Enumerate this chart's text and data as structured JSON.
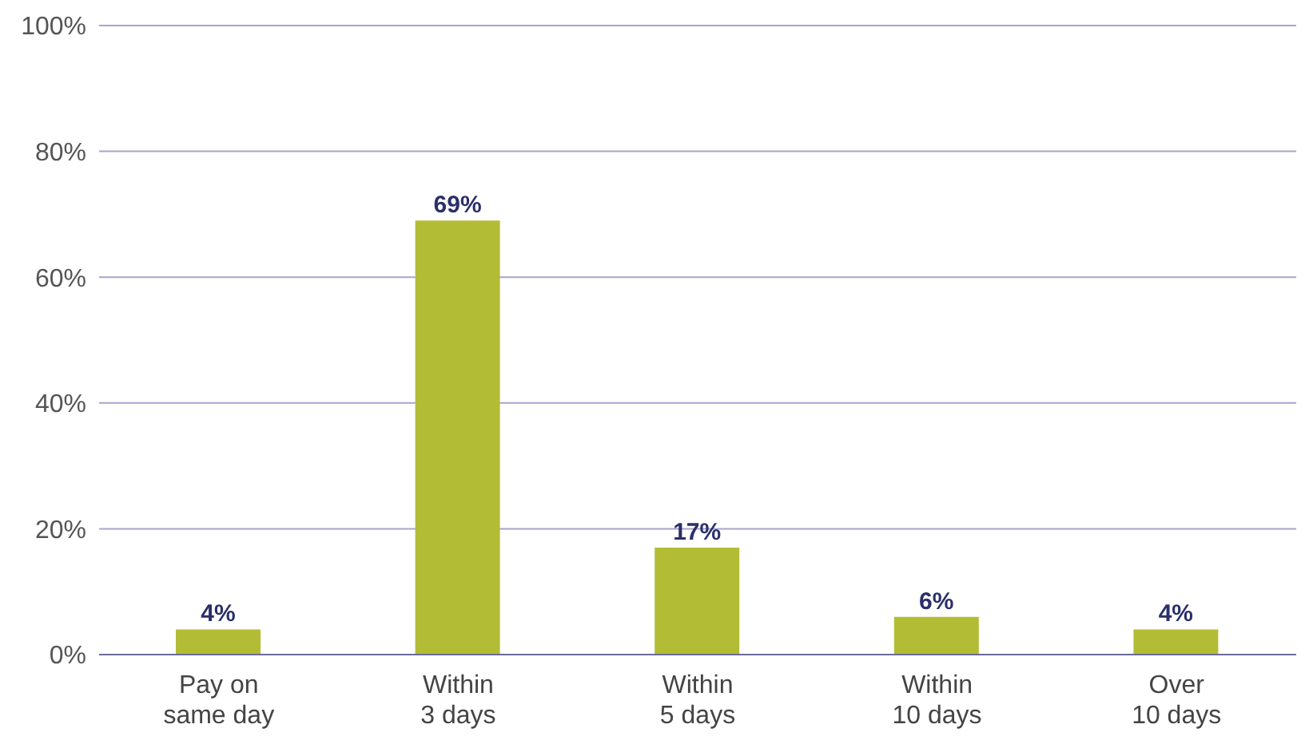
{
  "chart_data": {
    "type": "bar",
    "categories": [
      "Pay on same day",
      "Within 3 days",
      "Within 5 days",
      "Within 10 days",
      "Over 10 days"
    ],
    "values": [
      4,
      69,
      17,
      6,
      4
    ],
    "color": "#b3bc35",
    "ylim": [
      0,
      100
    ],
    "yticks": [
      {
        "value": 0,
        "label": "0%"
      },
      {
        "value": 20,
        "label": "20%"
      },
      {
        "value": 40,
        "label": "40%"
      },
      {
        "value": 60,
        "label": "60%"
      },
      {
        "value": 80,
        "label": "80%"
      },
      {
        "value": 100,
        "label": "100%"
      }
    ],
    "value_labels": [
      "4%",
      "69%",
      "17%",
      "6%",
      "4%"
    ],
    "grid": "y"
  }
}
